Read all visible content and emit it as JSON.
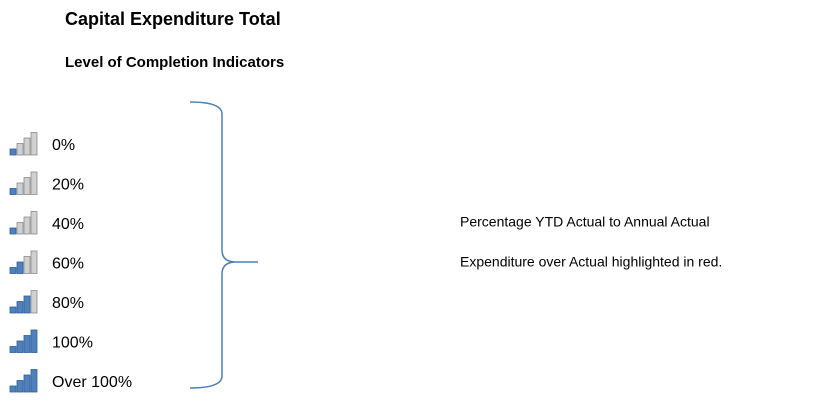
{
  "header": {
    "title": "Capital Expenditure Total",
    "subtitle": "Level of Completion Indicators"
  },
  "levels": [
    "0%",
    "20%",
    "40%",
    "60%",
    "80%",
    "100%",
    "Over 100%"
  ],
  "notes": [
    "Percentage YTD Actual to Annual Actual",
    "Expenditure over Actual highlighted in red."
  ]
}
